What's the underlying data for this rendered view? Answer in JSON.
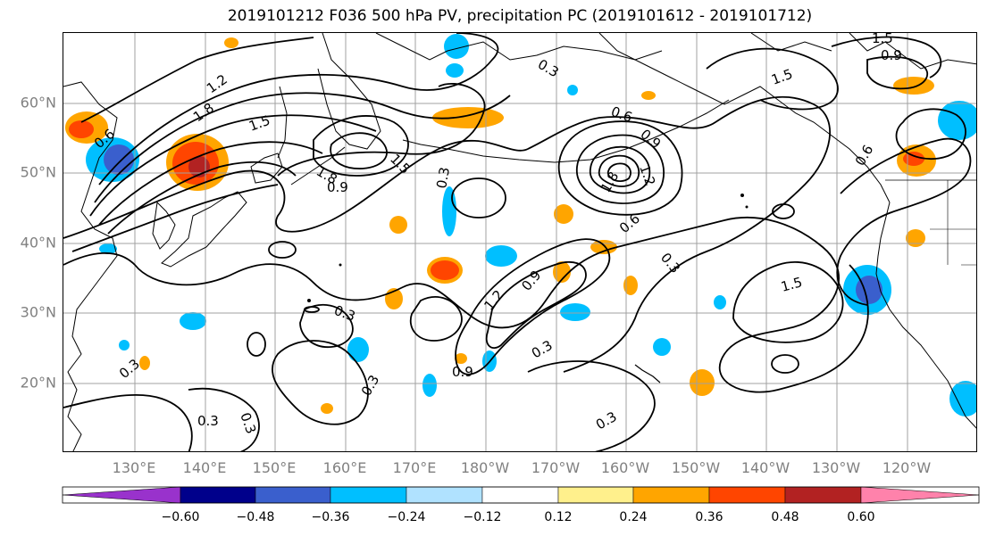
{
  "title": "2019101212 F036 500 hPa PV, precipitation PC (2019101612 - 2019101712)",
  "latitude_labels": [
    "60°N",
    "50°N",
    "40°N",
    "30°N",
    "20°N"
  ],
  "longitude_labels": [
    "130°E",
    "140°E",
    "150°E",
    "160°E",
    "170°E",
    "180°W",
    "170°W",
    "160°W",
    "150°W",
    "140°W",
    "130°W",
    "120°W"
  ],
  "contour_labels": [
    "1.5",
    "0.9",
    "0.3",
    "1.5",
    "1.2",
    "1.8",
    "1.5",
    "0.6",
    "1.8",
    "0.9",
    "1.5",
    "0.6",
    "0.9",
    "1.2",
    "1.8",
    "0.6",
    "0.3",
    "0.3",
    "0.9",
    "1.2",
    "0.3",
    "0.3",
    "0.3",
    "0.9",
    "0.3",
    "0.3",
    "0.3",
    "1.5",
    "0.6",
    "0.3"
  ],
  "colorbar": {
    "ticks": [
      "−0.60",
      "−0.48",
      "−0.36",
      "−0.24",
      "−0.12",
      "0.12",
      "0.24",
      "0.36",
      "0.48",
      "0.60"
    ],
    "colors": [
      "#9932cc",
      "#00008b",
      "#3a5fcd",
      "#00bfff",
      "#b0e2ff",
      "#ffffff",
      "#fff08c",
      "#ffa500",
      "#ff4500",
      "#b22222",
      "#ff82ab"
    ]
  },
  "colors": {
    "grid": "#a0a0a0",
    "coast": "#000000",
    "contour": "#000000",
    "axis_label": "#808080"
  }
}
